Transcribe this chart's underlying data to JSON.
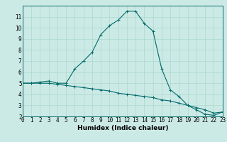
{
  "xlabel": "Humidex (Indice chaleur)",
  "bg_color": "#cceae5",
  "grid_color": "#aad8d0",
  "line_color": "#006b6b",
  "x_upper": [
    0,
    1,
    2,
    3,
    4,
    5,
    6,
    7,
    8,
    9,
    10,
    11,
    12,
    13,
    14,
    15,
    16,
    17,
    18,
    19,
    20,
    21,
    22,
    23
  ],
  "y_upper": [
    5.0,
    5.0,
    5.1,
    5.2,
    5.0,
    5.0,
    6.3,
    7.0,
    7.8,
    9.4,
    10.2,
    10.7,
    11.5,
    11.5,
    10.4,
    9.7,
    6.3,
    4.4,
    3.8,
    3.0,
    2.6,
    2.2,
    2.1,
    2.4
  ],
  "x_lower": [
    0,
    1,
    2,
    3,
    4,
    5,
    6,
    7,
    8,
    9,
    10,
    11,
    12,
    13,
    14,
    15,
    16,
    17,
    18,
    19,
    20,
    21,
    22,
    23
  ],
  "y_lower": [
    5.0,
    5.0,
    5.0,
    5.0,
    4.9,
    4.8,
    4.7,
    4.6,
    4.5,
    4.4,
    4.3,
    4.1,
    4.0,
    3.9,
    3.8,
    3.7,
    3.5,
    3.4,
    3.2,
    3.0,
    2.8,
    2.6,
    2.3,
    2.4
  ],
  "ylim": [
    2,
    12
  ],
  "xlim": [
    0,
    23
  ],
  "yticks": [
    2,
    3,
    4,
    5,
    6,
    7,
    8,
    9,
    10,
    11
  ],
  "xticks": [
    0,
    1,
    2,
    3,
    4,
    5,
    6,
    7,
    8,
    9,
    10,
    11,
    12,
    13,
    14,
    15,
    16,
    17,
    18,
    19,
    20,
    21,
    22,
    23
  ],
  "xlabel_fontsize": 6.5,
  "tick_fontsize": 5.5,
  "linewidth": 0.8,
  "markersize": 3.0,
  "markeredgewidth": 0.7
}
